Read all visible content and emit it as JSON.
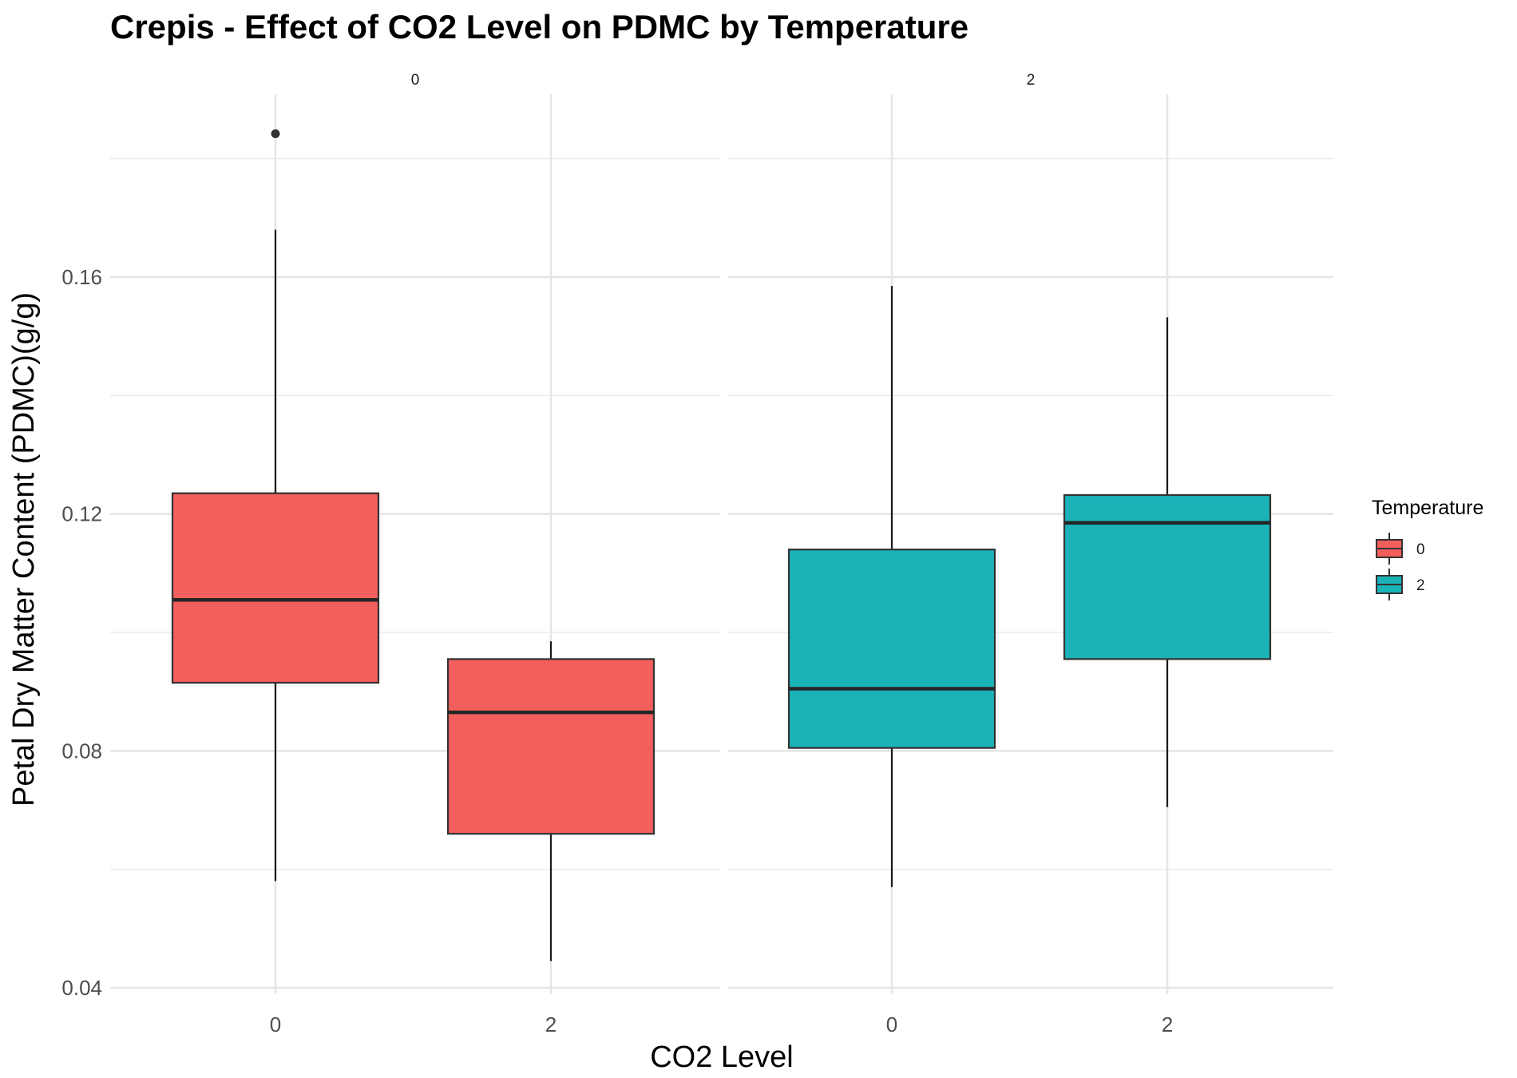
{
  "chart_data": {
    "type": "boxplot",
    "title": "Crepis - Effect of CO2 Level on PDMC by Temperature",
    "xlabel": "CO2 Level",
    "ylabel": "Petal Dry Matter Content (PDMC)(g/g)",
    "ylim": [
      0.036,
      0.188
    ],
    "yticks": [
      0.04,
      0.08,
      0.12,
      0.16
    ],
    "ytick_labels": [
      "0.04",
      "0.08",
      "0.12",
      "0.16"
    ],
    "categories": [
      "0",
      "2"
    ],
    "grid": true,
    "legend": {
      "title": "Temperature",
      "position": "right",
      "entries": [
        {
          "label": "0",
          "color": "#F25F5C"
        },
        {
          "label": "2",
          "color": "#1AB3B8"
        }
      ]
    },
    "panels": [
      {
        "strip": "0",
        "color": "#F25F5C",
        "boxes": [
          {
            "x": "0",
            "whisker_low": 0.058,
            "q1": 0.0915,
            "median": 0.1055,
            "q3": 0.1235,
            "whisker_high": 0.168,
            "outliers": [
              0.1842
            ]
          },
          {
            "x": "2",
            "whisker_low": 0.0445,
            "q1": 0.066,
            "median": 0.0865,
            "q3": 0.0955,
            "whisker_high": 0.0985,
            "outliers": []
          }
        ]
      },
      {
        "strip": "2",
        "color": "#1AB3B8",
        "boxes": [
          {
            "x": "0",
            "whisker_low": 0.057,
            "q1": 0.0805,
            "median": 0.0905,
            "q3": 0.114,
            "whisker_high": 0.1585,
            "outliers": []
          },
          {
            "x": "2",
            "whisker_low": 0.0705,
            "q1": 0.0955,
            "median": 0.1185,
            "q3": 0.1232,
            "whisker_high": 0.1532,
            "outliers": []
          }
        ]
      }
    ]
  }
}
